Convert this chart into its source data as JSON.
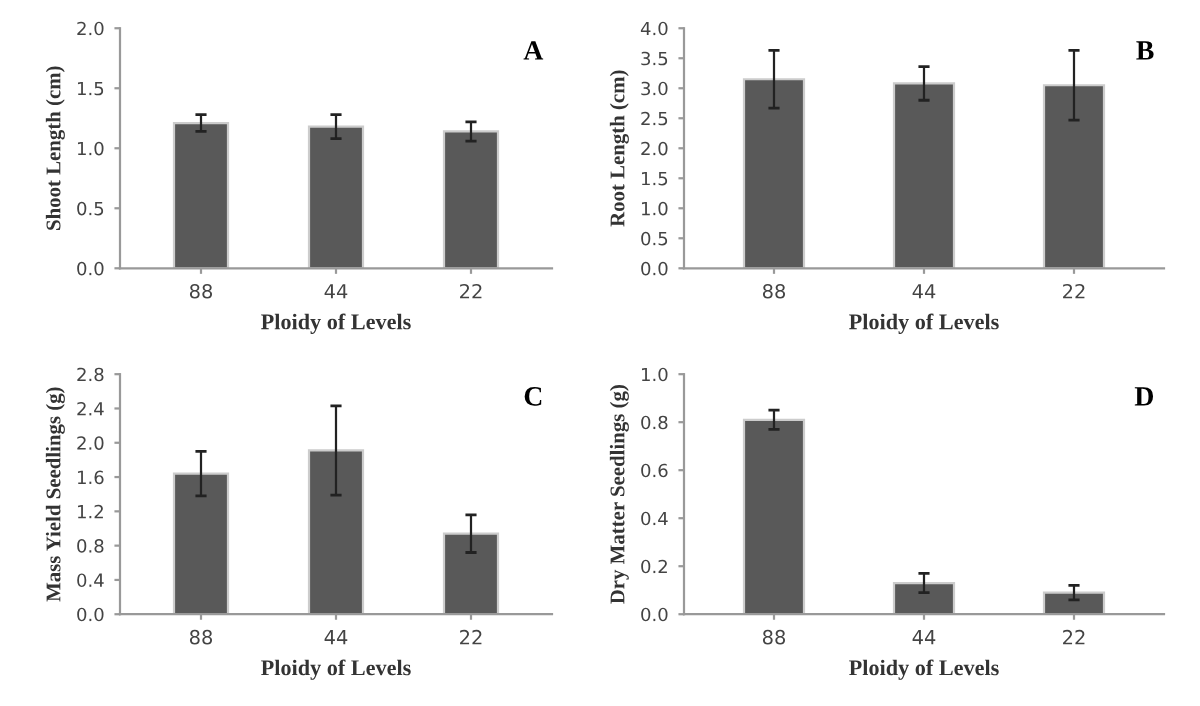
{
  "chart_data": [
    {
      "type": "bar",
      "categories": [
        "88",
        "44",
        "22"
      ],
      "values": [
        1.21,
        1.18,
        1.14
      ],
      "errors": [
        0.07,
        0.1,
        0.08
      ],
      "color": "#595959",
      "xlabel": "Ploidy of Levels",
      "ylabel": "Shoot Length (cm)",
      "annotations": [
        "A"
      ],
      "ylim": [
        0,
        2
      ],
      "yticks": [
        {
          "value": 0,
          "label": "0.0"
        },
        {
          "value": 0.5,
          "label": "0.5"
        },
        {
          "value": 1,
          "label": "1.0"
        },
        {
          "value": 1.5,
          "label": "1.5"
        },
        {
          "value": 2,
          "label": "2.0"
        }
      ],
      "grid": false
    },
    {
      "type": "bar",
      "categories": [
        "88",
        "44",
        "22"
      ],
      "values": [
        3.15,
        3.08,
        3.05
      ],
      "errors": [
        0.48,
        0.28,
        0.58
      ],
      "color": "#595959",
      "xlabel": "Ploidy of Levels",
      "ylabel": "Root Length (cm)",
      "annotations": [
        "B"
      ],
      "ylim": [
        0,
        4
      ],
      "yticks": [
        {
          "value": 0,
          "label": "0.0"
        },
        {
          "value": 0.5,
          "label": "0.5"
        },
        {
          "value": 1,
          "label": "1.0"
        },
        {
          "value": 1.5,
          "label": "1.5"
        },
        {
          "value": 2,
          "label": "2.0"
        },
        {
          "value": 2.5,
          "label": "2.5"
        },
        {
          "value": 3,
          "label": "3.0"
        },
        {
          "value": 3.5,
          "label": "3.5"
        },
        {
          "value": 4,
          "label": "4.0"
        }
      ],
      "grid": false
    },
    {
      "type": "bar",
      "categories": [
        "88",
        "44",
        "22"
      ],
      "values": [
        1.64,
        1.91,
        0.94
      ],
      "errors": [
        0.26,
        0.52,
        0.22
      ],
      "color": "#595959",
      "xlabel": "Ploidy of Levels",
      "ylabel": "Mass Yield Seedlings (g)",
      "annotations": [
        "C"
      ],
      "ylim": [
        0,
        2.8
      ],
      "yticks": [
        {
          "value": 0,
          "label": "0.0"
        },
        {
          "value": 0.4,
          "label": "0.4"
        },
        {
          "value": 0.8,
          "label": "0.8"
        },
        {
          "value": 1.2,
          "label": "1.2"
        },
        {
          "value": 1.6,
          "label": "1.6"
        },
        {
          "value": 2.0,
          "label": "2.0"
        },
        {
          "value": 2.4,
          "label": "2.4"
        },
        {
          "value": 2.8,
          "label": "2.8"
        }
      ],
      "grid": false
    },
    {
      "type": "bar",
      "categories": [
        "88",
        "44",
        "22"
      ],
      "values": [
        0.81,
        0.13,
        0.09
      ],
      "errors": [
        0.04,
        0.04,
        0.03
      ],
      "color": "#595959",
      "xlabel": "Ploidy of Levels",
      "ylabel": "Dry Matter Seedlings (g)",
      "annotations": [
        "D"
      ],
      "ylim": [
        0,
        1
      ],
      "yticks": [
        {
          "value": 0,
          "label": "0.0"
        },
        {
          "value": 0.2,
          "label": "0.2"
        },
        {
          "value": 0.4,
          "label": "0.4"
        },
        {
          "value": 0.6,
          "label": "0.6"
        },
        {
          "value": 0.8,
          "label": "0.8"
        },
        {
          "value": 1,
          "label": "1.0"
        }
      ],
      "grid": false
    }
  ]
}
